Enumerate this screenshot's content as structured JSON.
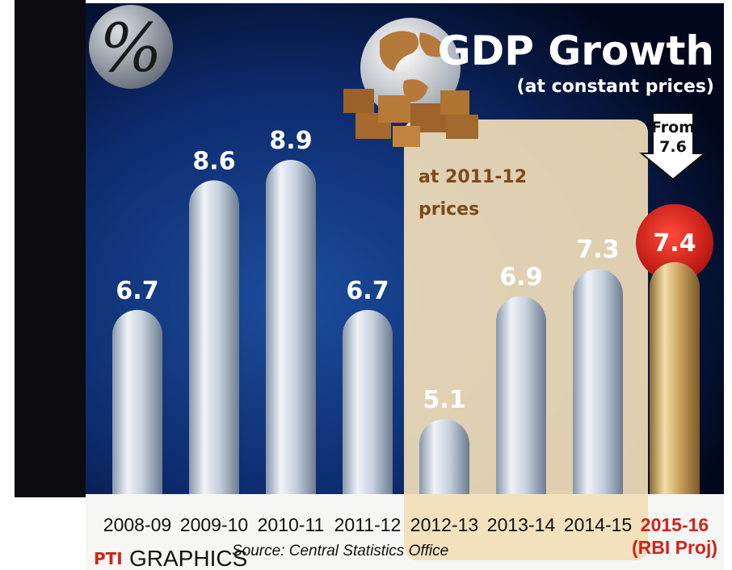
{
  "chart_data": {
    "type": "bar",
    "title": "GDP Growth",
    "subtitle": "(at constant prices)",
    "unit_symbol": "%",
    "categories": [
      "2008-09",
      "2009-10",
      "2010-11",
      "2011-12",
      "2012-13",
      "2013-14",
      "2014-15",
      "2015-16"
    ],
    "category_sublabels": [
      "",
      "",
      "",
      "",
      "",
      "",
      "",
      "(RBI Proj)"
    ],
    "values": [
      6.7,
      8.6,
      8.9,
      6.7,
      5.1,
      6.9,
      7.3,
      7.4
    ],
    "value_labels": [
      "6.7",
      "8.6",
      "8.9",
      "6.7",
      "5.1",
      "6.9",
      "7.3",
      "7.4"
    ],
    "highlight_index": 7,
    "ylim": [
      4,
      9.8
    ],
    "y_axis_min_label": "4",
    "grid": false,
    "annotations": {
      "panel_note_line1": "at 2011-12",
      "panel_note_line2": "prices",
      "panel_range": [
        "2012-13",
        "2015-16"
      ],
      "from_line1": "From",
      "from_line2": "7.6"
    },
    "source": "Source: Central Statistics Office",
    "credit": "GRAPHICS",
    "credit_logo": "PTI",
    "colors": {
      "bar": "#c9d3df",
      "highlight_bar": "#c9a15e",
      "highlight_badge": "#e0261c",
      "background": "#0d2b6e",
      "panel": "#f2deb8"
    }
  }
}
